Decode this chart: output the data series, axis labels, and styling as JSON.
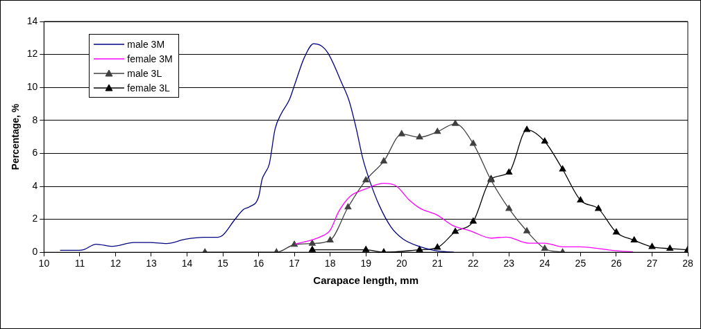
{
  "chart_data": {
    "type": "line",
    "xlabel": "Carapace length, mm",
    "ylabel": "Percentage, %",
    "xlim": [
      10,
      28
    ],
    "xticks": [
      10,
      11,
      12,
      13,
      14,
      15,
      16,
      17,
      18,
      19,
      20,
      21,
      22,
      23,
      24,
      25,
      26,
      27,
      28
    ],
    "ylim": [
      0,
      14
    ],
    "yticks": [
      0,
      2,
      4,
      6,
      8,
      10,
      12,
      14
    ],
    "grid": "y",
    "legend": "top left",
    "series": [
      {
        "name": "male 3M",
        "color": "#000080",
        "marker": "none",
        "x": [
          10.45,
          10.97,
          11.1,
          11.46,
          11.92,
          12.51,
          12.97,
          13.43,
          13.95,
          14.47,
          14.86,
          15.0,
          15.32,
          15.58,
          15.74,
          16.0,
          16.1,
          16.17,
          16.3,
          16.46,
          16.63,
          16.86,
          17.02,
          17.28,
          17.54,
          17.74,
          17.94,
          18.33,
          18.53,
          18.72,
          18.92,
          19.11,
          19.37,
          19.7,
          20.03,
          20.48,
          20.94,
          21.46
        ],
        "values": [
          0.12,
          0.12,
          0.15,
          0.49,
          0.36,
          0.59,
          0.59,
          0.53,
          0.79,
          0.91,
          0.91,
          1.04,
          1.94,
          2.6,
          2.75,
          3.36,
          4.44,
          4.77,
          5.36,
          7.47,
          8.39,
          9.25,
          10.24,
          11.82,
          12.65,
          12.54,
          12.08,
          10.24,
          9.19,
          7.6,
          5.63,
          4.31,
          2.86,
          1.54,
          0.82,
          0.36,
          0.1,
          0.0
        ]
      },
      {
        "name": "female 3M",
        "color": "#ff00ff",
        "marker": "none",
        "x": [
          17.02,
          17.74,
          18.0,
          18.24,
          18.56,
          19.0,
          19.5,
          19.86,
          20.2,
          20.52,
          20.98,
          21.44,
          21.92,
          22.5,
          22.93,
          23.55,
          24.0,
          24.5,
          24.98,
          25.95,
          26.47
        ],
        "values": [
          0.49,
          0.95,
          1.34,
          2.47,
          3.39,
          3.85,
          4.18,
          4.0,
          3.19,
          2.66,
          2.27,
          1.61,
          1.3,
          0.86,
          0.92,
          0.55,
          0.55,
          0.33,
          0.33,
          0.1,
          0.02
        ]
      },
      {
        "name": "male 3L",
        "color": "#404040",
        "marker": "triangle",
        "x": [
          14.5,
          16.5,
          17,
          17.5,
          18,
          18.5,
          19,
          19.5,
          20,
          20.5,
          21,
          21.5,
          22,
          22.5,
          23,
          23.5,
          24,
          24.5
        ],
        "values": [
          0,
          0,
          0.46,
          0.53,
          0.73,
          2.73,
          4.37,
          5.52,
          7.17,
          6.98,
          7.31,
          7.8,
          6.59,
          4.37,
          2.64,
          1.28,
          0.22,
          0
        ]
      },
      {
        "name": "female 3L",
        "color": "#000000",
        "marker": "triangle",
        "x": [
          17.5,
          19,
          19.5,
          20.5,
          21,
          21.5,
          22,
          22.5,
          23,
          23.5,
          24,
          24.5,
          25,
          25.5,
          26,
          26.5,
          27,
          27.5,
          28
        ],
        "values": [
          0.15,
          0.15,
          0,
          0.15,
          0.29,
          1.25,
          1.87,
          4.44,
          4.84,
          7.43,
          6.72,
          5.03,
          3.15,
          2.64,
          1.21,
          0.73,
          0.33,
          0.22,
          0.15
        ]
      }
    ]
  }
}
